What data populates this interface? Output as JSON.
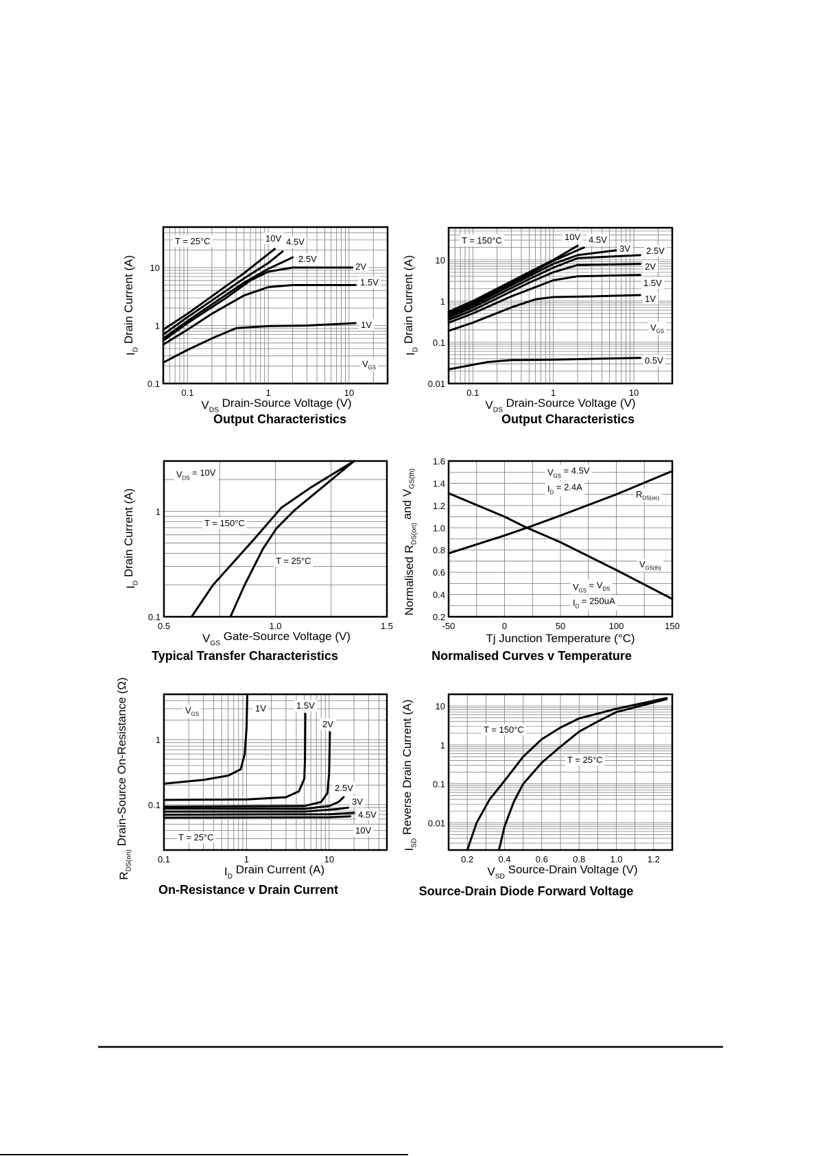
{
  "chart_data": [
    {
      "type": "line",
      "title": "Output Characteristics",
      "xlabel": [
        [
          "V",
          ""
        ],
        [
          "DS",
          "sub"
        ],
        [
          "  Drain-Source Voltage (V)",
          ""
        ]
      ],
      "ylabel": [
        [
          "I",
          ""
        ],
        [
          "D",
          "sub"
        ],
        [
          "  Drain Current (A)",
          ""
        ]
      ],
      "xscale": "log",
      "yscale": "log",
      "xlim": [
        0.05,
        30
      ],
      "ylim": [
        0.1,
        50
      ],
      "xticks": [
        0.1,
        1,
        10
      ],
      "xtick_labels": [
        "0.1",
        "1",
        "10"
      ],
      "yticks": [
        0.1,
        1,
        10
      ],
      "ytick_labels": [
        "0.1",
        "1",
        "10"
      ],
      "grid": true,
      "annotations": [
        [
          [
            "T = 25°C",
            ""
          ]
        ],
        [
          [
            "10V",
            ""
          ]
        ],
        [
          [
            "4.5V",
            ""
          ]
        ],
        [
          [
            "2.5V",
            ""
          ]
        ],
        [
          [
            "2V",
            ""
          ]
        ],
        [
          [
            "1.5V",
            ""
          ]
        ],
        [
          [
            "1V",
            ""
          ]
        ],
        [
          [
            "V",
            ""
          ],
          [
            "GS",
            "sub"
          ]
        ]
      ],
      "series": [
        {
          "name": "1V",
          "x": [
            0.05,
            0.1,
            0.2,
            0.4,
            1,
            3,
            12
          ],
          "y": [
            0.23,
            0.38,
            0.6,
            0.9,
            0.98,
            1.0,
            1.1
          ]
        },
        {
          "name": "1.5V",
          "x": [
            0.05,
            0.1,
            0.2,
            0.5,
            1,
            2,
            12
          ],
          "y": [
            0.47,
            0.85,
            1.6,
            3.3,
            4.6,
            5,
            5
          ]
        },
        {
          "name": "2V",
          "x": [
            0.05,
            0.1,
            0.3,
            0.6,
            1,
            2,
            12
          ],
          "y": [
            0.55,
            1.1,
            3,
            6,
            8.5,
            10,
            10
          ]
        },
        {
          "name": "2.5V",
          "x": [
            0.05,
            0.1,
            0.5,
            1,
            2
          ],
          "y": [
            0.6,
            1.2,
            5.5,
            9.5,
            15
          ]
        },
        {
          "name": "4.5V",
          "x": [
            0.05,
            0.1,
            0.5,
            1,
            1.5
          ],
          "y": [
            0.7,
            1.4,
            6.5,
            12,
            19
          ]
        },
        {
          "name": "10V",
          "x": [
            0.05,
            0.1,
            0.5,
            1.2
          ],
          "y": [
            0.85,
            1.6,
            8,
            21
          ]
        }
      ]
    },
    {
      "type": "line",
      "title": "Output Characteristics",
      "xlabel": [
        [
          "V",
          ""
        ],
        [
          "DS",
          "sub"
        ],
        [
          "  Drain-Source Voltage (V)",
          ""
        ]
      ],
      "ylabel": [
        [
          "I",
          ""
        ],
        [
          "D",
          "sub"
        ],
        [
          "  Drain Current (A)",
          ""
        ]
      ],
      "xscale": "log",
      "yscale": "log",
      "xlim": [
        0.05,
        30
      ],
      "ylim": [
        0.01,
        60
      ],
      "xticks": [
        0.1,
        1,
        10
      ],
      "xtick_labels": [
        "0.1",
        "1",
        "10"
      ],
      "yticks": [
        0.01,
        0.1,
        1,
        10
      ],
      "ytick_labels": [
        "0.01",
        "0.1",
        "1",
        "10"
      ],
      "grid": true,
      "annotations": [
        [
          [
            "T = 150°C",
            ""
          ]
        ],
        [
          [
            "10V",
            ""
          ]
        ],
        [
          [
            "4.5V",
            ""
          ]
        ],
        [
          [
            "3V",
            ""
          ]
        ],
        [
          [
            "2.5V",
            ""
          ]
        ],
        [
          [
            "2V",
            ""
          ]
        ],
        [
          [
            "1.5V",
            ""
          ]
        ],
        [
          [
            "1V",
            ""
          ]
        ],
        [
          [
            "V",
            ""
          ],
          [
            "GS",
            "sub"
          ]
        ],
        [
          [
            "0.5V",
            ""
          ]
        ]
      ],
      "series": [
        {
          "name": "0.5V",
          "x": [
            0.05,
            0.15,
            0.3,
            1,
            12
          ],
          "y": [
            0.022,
            0.033,
            0.037,
            0.038,
            0.042
          ]
        },
        {
          "name": "1V",
          "x": [
            0.05,
            0.1,
            0.3,
            0.6,
            1,
            3,
            12
          ],
          "y": [
            0.19,
            0.3,
            0.7,
            1.1,
            1.25,
            1.3,
            1.4
          ]
        },
        {
          "name": "1.5V",
          "x": [
            0.05,
            0.1,
            0.3,
            1,
            2,
            12
          ],
          "y": [
            0.3,
            0.5,
            1.3,
            3.2,
            4,
            4.3
          ]
        },
        {
          "name": "2V",
          "x": [
            0.05,
            0.1,
            0.5,
            1,
            2,
            12
          ],
          "y": [
            0.35,
            0.6,
            2.8,
            5,
            7.5,
            8
          ]
        },
        {
          "name": "2.5V",
          "x": [
            0.05,
            0.1,
            0.5,
            1,
            2,
            12
          ],
          "y": [
            0.4,
            0.7,
            3.4,
            6.5,
            11,
            13
          ]
        },
        {
          "name": "3V",
          "x": [
            0.05,
            0.1,
            0.5,
            1,
            2,
            6
          ],
          "y": [
            0.45,
            0.8,
            4,
            8,
            13,
            17
          ]
        },
        {
          "name": "4.5V",
          "x": [
            0.05,
            0.1,
            0.5,
            1,
            2.4
          ],
          "y": [
            0.5,
            0.9,
            4.5,
            9.5,
            20
          ]
        },
        {
          "name": "10V",
          "x": [
            0.05,
            0.1,
            0.5,
            1,
            2
          ],
          "y": [
            0.55,
            1.0,
            5,
            10,
            22
          ]
        }
      ]
    },
    {
      "type": "line",
      "title": "Typical Transfer Characteristics",
      "xlabel": [
        [
          "V",
          ""
        ],
        [
          "GS",
          "sub"
        ],
        [
          "  Gate-Source Voltage (V)",
          ""
        ]
      ],
      "ylabel": [
        [
          "I",
          ""
        ],
        [
          "D",
          "sub"
        ],
        [
          "  Drain Current (A)",
          ""
        ]
      ],
      "xscale": "linear",
      "yscale": "log",
      "xlim": [
        0.5,
        1.5
      ],
      "ylim": [
        0.1,
        3
      ],
      "xticks": [
        0.5,
        1.0,
        1.5
      ],
      "xtick_labels": [
        "0.5",
        "1.0",
        "1.5"
      ],
      "yticks": [
        0.1,
        1
      ],
      "ytick_labels": [
        "0.1",
        "1"
      ],
      "grid": true,
      "annotations": [
        [
          [
            "V",
            ""
          ],
          [
            "DS",
            "sub"
          ],
          [
            " = 10V",
            ""
          ]
        ],
        [
          [
            "T = 150°C",
            ""
          ]
        ],
        [
          [
            "T = 25°C",
            ""
          ]
        ]
      ],
      "series": [
        {
          "name": "T = 150°C",
          "x": [
            0.624,
            0.72,
            0.903,
            1.026,
            1.16,
            1.353
          ],
          "y": [
            0.1,
            0.2,
            0.54,
            1.08,
            1.69,
            3
          ]
        },
        {
          "name": "T = 25°C",
          "x": [
            0.798,
            0.862,
            0.944,
            1.005,
            1.087,
            1.21,
            1.353
          ],
          "y": [
            0.1,
            0.2,
            0.44,
            0.69,
            1.03,
            1.69,
            3
          ]
        }
      ]
    },
    {
      "type": "line",
      "title": "Normalised Curves v Temperature",
      "xlabel": [
        [
          "Tj  Junction Temperature (°C)",
          ""
        ]
      ],
      "ylabel": [
        [
          "Normalised R",
          ""
        ],
        [
          "DS(on)",
          "sub"
        ],
        [
          " and V",
          ""
        ],
        [
          "GS(th)",
          "sub"
        ]
      ],
      "xscale": "linear",
      "yscale": "linear",
      "xlim": [
        -50,
        150
      ],
      "ylim": [
        0.2,
        1.6
      ],
      "xticks": [
        -50,
        0,
        50,
        100,
        150
      ],
      "xtick_labels": [
        "-50",
        "0",
        "50",
        "100",
        "150"
      ],
      "yticks": [
        0.2,
        0.4,
        0.6,
        0.8,
        1.0,
        1.2,
        1.4,
        1.6
      ],
      "ytick_labels": [
        "0.2",
        "0.4",
        "0.6",
        "0.8",
        "1.0",
        "1.2",
        "1.4",
        "1.6"
      ],
      "grid": true,
      "annotations": [
        [
          [
            "V",
            ""
          ],
          [
            "GS",
            "sub"
          ],
          [
            " = 4.5V",
            ""
          ]
        ],
        [
          [
            "I",
            ""
          ],
          [
            "D",
            "sub"
          ],
          [
            " = 2.4A",
            ""
          ]
        ],
        [
          [
            "R",
            ""
          ],
          [
            "DS(on)",
            "sub"
          ]
        ],
        [
          [
            "V",
            ""
          ],
          [
            "GS(th)",
            "sub"
          ]
        ],
        [
          [
            "V",
            ""
          ],
          [
            "GS",
            "sub"
          ],
          [
            " = V",
            ""
          ],
          [
            "DS",
            "sub"
          ]
        ],
        [
          [
            "I",
            ""
          ],
          [
            "D",
            "sub"
          ],
          [
            " = 250uA",
            ""
          ]
        ]
      ],
      "series": [
        {
          "name": "RDS(on)",
          "x": [
            -50,
            0,
            20,
            50,
            100,
            150
          ],
          "y": [
            0.77,
            0.93,
            1.0,
            1.11,
            1.3,
            1.51
          ]
        },
        {
          "name": "VGS(th)",
          "x": [
            -50,
            0,
            20,
            50,
            100,
            150
          ],
          "y": [
            1.31,
            1.1,
            1.0,
            0.87,
            0.62,
            0.36
          ]
        }
      ]
    },
    {
      "type": "line",
      "title": "On-Resistance v Drain Current",
      "xlabel": [
        [
          "I",
          ""
        ],
        [
          "D",
          "sub"
        ],
        [
          "  Drain Current (A)",
          ""
        ]
      ],
      "ylabel": [
        [
          "R",
          ""
        ],
        [
          "DS(on)",
          "sub"
        ],
        [
          " Drain-Source On-Resistance (Ω)",
          ""
        ]
      ],
      "xscale": "log",
      "yscale": "log",
      "xlim": [
        0.1,
        50
      ],
      "ylim": [
        0.02,
        5
      ],
      "xticks": [
        0.1,
        1,
        10
      ],
      "xtick_labels": [
        "0.1",
        "1",
        "10"
      ],
      "yticks": [
        0.1,
        1
      ],
      "ytick_labels": [
        "0.1",
        "1"
      ],
      "grid": true,
      "annotations": [
        [
          [
            "V",
            ""
          ],
          [
            "GS",
            "sub"
          ]
        ],
        [
          [
            "1V",
            ""
          ]
        ],
        [
          [
            "1.5V",
            ""
          ]
        ],
        [
          [
            "2V",
            ""
          ]
        ],
        [
          [
            "2.5V",
            ""
          ]
        ],
        [
          [
            "3V",
            ""
          ]
        ],
        [
          [
            "4.5V",
            ""
          ]
        ],
        [
          [
            "10V",
            ""
          ]
        ],
        [
          [
            "T = 25°C",
            ""
          ]
        ]
      ],
      "series": [
        {
          "name": "1V",
          "x": [
            0.1,
            0.3,
            0.6,
            0.85,
            0.95,
            1.0,
            1.02
          ],
          "y": [
            0.21,
            0.24,
            0.28,
            0.35,
            0.6,
            1.5,
            5
          ]
        },
        {
          "name": "1.5V",
          "x": [
            0.1,
            1,
            3,
            4.3,
            5,
            5.1,
            5.15
          ],
          "y": [
            0.118,
            0.12,
            0.13,
            0.16,
            0.25,
            0.5,
            2.5
          ]
        },
        {
          "name": "2V",
          "x": [
            0.1,
            5,
            8,
            9.5,
            10,
            10.2
          ],
          "y": [
            0.093,
            0.095,
            0.11,
            0.15,
            0.3,
            1.3
          ]
        },
        {
          "name": "2.5V",
          "x": [
            0.1,
            5,
            10,
            13,
            15
          ],
          "y": [
            0.087,
            0.086,
            0.095,
            0.11,
            0.13
          ]
        },
        {
          "name": "3V",
          "x": [
            0.1,
            5,
            12,
            17
          ],
          "y": [
            0.078,
            0.078,
            0.085,
            0.09
          ]
        },
        {
          "name": "4.5V",
          "x": [
            0.1,
            10,
            20
          ],
          "y": [
            0.07,
            0.071,
            0.075
          ]
        },
        {
          "name": "10V",
          "x": [
            0.1,
            10,
            18
          ],
          "y": [
            0.063,
            0.064,
            0.066
          ]
        }
      ]
    },
    {
      "type": "line",
      "title": "Source-Drain Diode Forward Voltage",
      "xlabel": [
        [
          "V",
          ""
        ],
        [
          "SD",
          "sub"
        ],
        [
          "  Source-Drain Voltage (V)",
          ""
        ]
      ],
      "ylabel": [
        [
          "I",
          ""
        ],
        [
          "SD",
          "sub"
        ],
        [
          "  Reverse Drain Current (A)",
          ""
        ]
      ],
      "xscale": "linear",
      "yscale": "log",
      "xlim": [
        0.1,
        1.3
      ],
      "ylim": [
        0.002,
        20
      ],
      "xticks": [
        0.2,
        0.4,
        0.6,
        0.8,
        1.0,
        1.2
      ],
      "xtick_labels": [
        "0.2",
        "0.4",
        "0.6",
        "0.8",
        "1.0",
        "1.2"
      ],
      "yticks": [
        0.01,
        0.1,
        1,
        10
      ],
      "ytick_labels": [
        "0.01",
        "0.1",
        "1",
        "10"
      ],
      "grid": true,
      "annotations": [
        [
          [
            "T = 150°C",
            ""
          ]
        ],
        [
          [
            "T = 25°C",
            ""
          ]
        ]
      ],
      "series": [
        {
          "name": "T = 150°C",
          "x": [
            0.2,
            0.25,
            0.32,
            0.4,
            0.5,
            0.6,
            0.7,
            0.8,
            1.0,
            1.27
          ],
          "y": [
            0.002,
            0.01,
            0.04,
            0.12,
            0.5,
            1.4,
            2.8,
            4.8,
            8.5,
            16
          ]
        },
        {
          "name": "T = 25°C",
          "x": [
            0.37,
            0.4,
            0.45,
            0.5,
            0.6,
            0.7,
            0.8,
            0.9,
            1.0,
            1.27
          ],
          "y": [
            0.002,
            0.008,
            0.035,
            0.1,
            0.35,
            0.9,
            2.2,
            4,
            7,
            15
          ]
        }
      ]
    }
  ]
}
